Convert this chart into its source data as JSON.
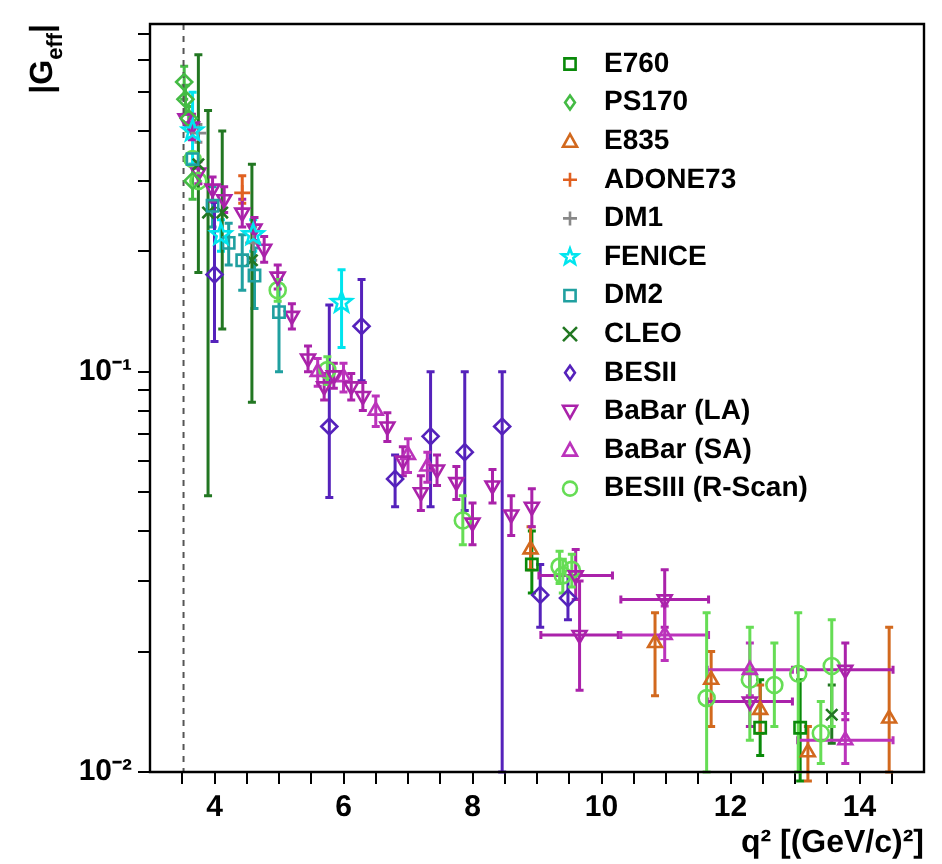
{
  "chart_data": {
    "type": "scatter",
    "xlabel": "q² [(GeV/c)²]",
    "ylabel": "|G$_{eff}$|",
    "log": "y",
    "grid": false,
    "legend": "top right",
    "xlim": [
      3,
      15
    ],
    "ylim": [
      0.01,
      0.74
    ],
    "xticks": [
      {
        "value": 3.5,
        "label": null
      },
      4,
      {
        "value": 4.5,
        "label": null
      },
      {
        "value": 5,
        "label": null
      },
      {
        "value": 5.5,
        "label": null
      },
      6,
      {
        "value": 6.5,
        "label": null
      },
      {
        "value": 7,
        "label": null
      },
      {
        "value": 7.5,
        "label": null
      },
      8,
      {
        "value": 8.5,
        "label": null
      },
      {
        "value": 9,
        "label": null
      },
      {
        "value": 9.5,
        "label": null
      },
      10,
      {
        "value": 10.5,
        "label": null
      },
      {
        "value": 11,
        "label": null
      },
      {
        "value": 11.5,
        "label": null
      },
      12,
      {
        "value": 12.5,
        "label": null
      },
      {
        "value": 13,
        "label": null
      },
      {
        "value": 13.5,
        "label": null
      },
      14,
      {
        "value": 14.5,
        "label": null
      }
    ],
    "yticks": [
      {
        "value": 0.01,
        "label": "10⁻²"
      },
      {
        "value": 0.02,
        "label": null
      },
      {
        "value": 0.03,
        "label": null
      },
      {
        "value": 0.04,
        "label": null
      },
      {
        "value": 0.05,
        "label": null
      },
      {
        "value": 0.06,
        "label": null
      },
      {
        "value": 0.07,
        "label": null
      },
      {
        "value": 0.08,
        "label": null
      },
      {
        "value": 0.09,
        "label": null
      },
      {
        "value": 0.1,
        "label": "10⁻¹"
      },
      {
        "value": 0.2,
        "label": null
      },
      {
        "value": 0.3,
        "label": null
      },
      {
        "value": 0.4,
        "label": null
      },
      {
        "value": 0.5,
        "label": null
      },
      {
        "value": 0.6,
        "label": null
      },
      {
        "value": 0.7,
        "label": null
      }
    ],
    "ref_lines": [
      {
        "axis": "x",
        "value": 3.52,
        "label": null,
        "color": "#555555",
        "line_style": "dashed"
      }
    ],
    "series": [
      {
        "name": "E760",
        "color": "#0a8a0a",
        "marker": "square",
        "x": [
          8.92,
          12.46,
          13.08
        ],
        "values": [
          0.033,
          0.0129,
          0.0129
        ],
        "errors": [
          [
            0.028,
            0.04
          ],
          [
            0.011,
            0.017
          ],
          [
            0.0095,
            0.017
          ]
        ]
      },
      {
        "name": "PS170",
        "color": "#44bb44",
        "marker": "diamond",
        "x": [
          3.53,
          3.55,
          3.6,
          3.66
        ],
        "values": [
          0.53,
          0.48,
          0.43,
          0.3
        ],
        "errors": [
          0.05,
          0.04,
          0.03,
          0.03
        ]
      },
      {
        "name": "E835",
        "color": "#d2691e",
        "marker": "triangle",
        "x": [
          8.9,
          10.83,
          11.7,
          12.46,
          13.2,
          14.46
        ],
        "values": [
          0.036,
          0.021,
          0.017,
          0.0143,
          0.0112,
          0.0136
        ],
        "errors": [
          [
            0.032,
            0.041
          ],
          [
            0.0155,
            0.025
          ],
          [
            0.013,
            0.02
          ],
          [
            0.0125,
            0.0165
          ],
          [
            0.0095,
            0.013
          ],
          [
            0.01,
            0.023
          ]
        ]
      },
      {
        "name": "ADONE73",
        "color": "#e06020",
        "marker": "cross",
        "x": [
          4.43
        ],
        "values": [
          0.28
        ],
        "errors": [
          [
            0.264,
            0.309
          ]
        ]
      },
      {
        "name": "DM1",
        "color": "#888888",
        "marker": "cross",
        "x": [
          3.75,
          4.6
        ],
        "values": [
          0.395,
          0.21
        ],
        "errors": [
          0.02,
          0.02
        ]
      },
      {
        "name": "FENICE",
        "color": "#00e5ee",
        "marker": "star",
        "x": [
          3.66,
          4.1,
          4.6,
          5.97
        ],
        "values": [
          0.4,
          0.22,
          0.22,
          0.149
        ],
        "errors": [
          [
            0.33,
            0.5
          ],
          0.02,
          0.02,
          [
            0.115,
            0.18
          ]
        ]
      },
      {
        "name": "DM2",
        "color": "#20a0a0",
        "marker": "square",
        "x": [
          3.66,
          3.97,
          4.22,
          4.43,
          4.62,
          5.0
        ],
        "values": [
          0.34,
          0.26,
          0.21,
          0.19,
          0.174,
          0.141
        ],
        "errors": [
          null,
          0.03,
          0.025,
          0.03,
          0.03,
          [
            0.1,
            0.17
          ]
        ]
      },
      {
        "name": "CLEO",
        "color": "#227722",
        "marker": "x",
        "x": [
          3.75,
          3.9,
          4.12,
          4.58,
          13.57
        ],
        "values": [
          0.33,
          0.25,
          0.25,
          0.19,
          0.0139
        ],
        "errors": [
          [
            0.177,
            0.62
          ],
          [
            0.049,
            0.45
          ],
          [
            0.128,
            0.4
          ],
          [
            0.084,
            0.33
          ],
          [
            0.0118,
            0.0165
          ]
        ]
      },
      {
        "name": "BESII",
        "color": "#5522bb",
        "marker": "diamond",
        "x": [
          4.0,
          5.78,
          6.28,
          6.8,
          7.35,
          7.88,
          8.46,
          9.05,
          9.48
        ],
        "values": [
          0.175,
          0.073,
          0.13,
          0.054,
          0.069,
          0.063,
          0.073,
          0.0277,
          0.0272
        ],
        "errors": [
          [
            0.119,
            0.265
          ],
          [
            0.0485,
            0.147
          ],
          [
            0.095,
            0.17
          ],
          [
            0.046,
            0.062
          ],
          [
            0.046,
            0.1
          ],
          [
            0.045,
            0.1
          ],
          [
            0.01,
            0.1
          ],
          [
            0.023,
            0.033
          ],
          [
            0.024,
            0.031
          ]
        ]
      },
      {
        "name": "BaBar (LA)",
        "color": "#aa22aa",
        "marker": "triangle-down",
        "x": [
          3.55,
          3.65,
          3.75,
          3.97,
          4.15,
          4.43,
          4.62,
          4.77,
          4.98,
          5.2,
          5.45,
          5.7,
          5.85,
          6.12,
          6.3,
          6.68,
          6.92,
          7.2,
          7.45,
          7.75,
          8.0,
          8.31,
          8.6,
          8.92,
          9.6,
          9.66,
          10.98,
          12.3,
          13.78
        ],
        "values": [
          0.43,
          0.41,
          0.315,
          0.287,
          0.27,
          0.25,
          0.228,
          0.203,
          0.173,
          0.138,
          0.108,
          0.092,
          0.098,
          0.092,
          0.087,
          0.073,
          0.06,
          0.05,
          0.057,
          0.053,
          0.042,
          0.052,
          0.044,
          0.046,
          0.031,
          0.022,
          0.027,
          0.015,
          0.018
        ],
        "errors": [
          null,
          0.03,
          0.02,
          0.02,
          0.02,
          0.02,
          0.015,
          0.015,
          0.012,
          0.01,
          0.008,
          0.007,
          0.007,
          0.007,
          0.007,
          0.006,
          0.005,
          0.005,
          0.005,
          0.005,
          0.005,
          0.005,
          0.005,
          0.005,
          [
            0.027,
            0.036
          ],
          [
            0.016,
            0.03
          ],
          [
            0.023,
            0.032
          ],
          [
            0.013,
            0.018
          ],
          [
            0.0135,
            0.021
          ]
        ],
        "xerrors": [
          null,
          null,
          null,
          null,
          null,
          null,
          null,
          null,
          null,
          null,
          null,
          null,
          null,
          null,
          null,
          null,
          null,
          null,
          null,
          null,
          null,
          null,
          null,
          null,
          0.57,
          0.6,
          0.68,
          0.66,
          0.74
        ]
      },
      {
        "name": "BaBar (SA)",
        "color": "#bb33bb",
        "marker": "triangle",
        "x": [
          5.6,
          6.0,
          6.5,
          7.0,
          7.3,
          10.98,
          12.3,
          13.78
        ],
        "values": [
          0.1,
          0.097,
          0.08,
          0.062,
          0.058,
          0.022,
          0.018,
          0.012
        ],
        "errors": [
          0.008,
          0.008,
          0.007,
          0.006,
          0.005,
          [
            0.019,
            0.026
          ],
          [
            0.0155,
            0.021
          ],
          [
            0.0105,
            0.014
          ]
        ],
        "xerrors": [
          null,
          null,
          null,
          null,
          null,
          0.68,
          0.66,
          0.74
        ]
      },
      {
        "name": "BESIII (R-Scan)",
        "color": "#66dd55",
        "marker": "circle",
        "x": [
          3.66,
          3.75,
          4.98,
          5.75,
          7.85,
          9.35,
          9.4,
          9.54,
          11.63,
          12.3,
          12.68,
          13.05,
          13.4,
          13.57
        ],
        "values": [
          0.34,
          0.3,
          0.16,
          0.101,
          0.0425,
          0.0326,
          0.031,
          0.032,
          0.0153,
          0.017,
          0.0165,
          0.0176,
          0.0125,
          0.0184
        ],
        "errors": [
          null,
          null,
          0.01,
          0.008,
          [
            0.037,
            0.049
          ],
          0.003,
          0.003,
          0.003,
          [
            0.01,
            0.025
          ],
          [
            0.012,
            0.023
          ],
          [
            0.013,
            0.021
          ],
          [
            0.01,
            0.025
          ],
          [
            0.0105,
            0.015
          ],
          [
            0.013,
            0.024
          ]
        ]
      }
    ]
  }
}
